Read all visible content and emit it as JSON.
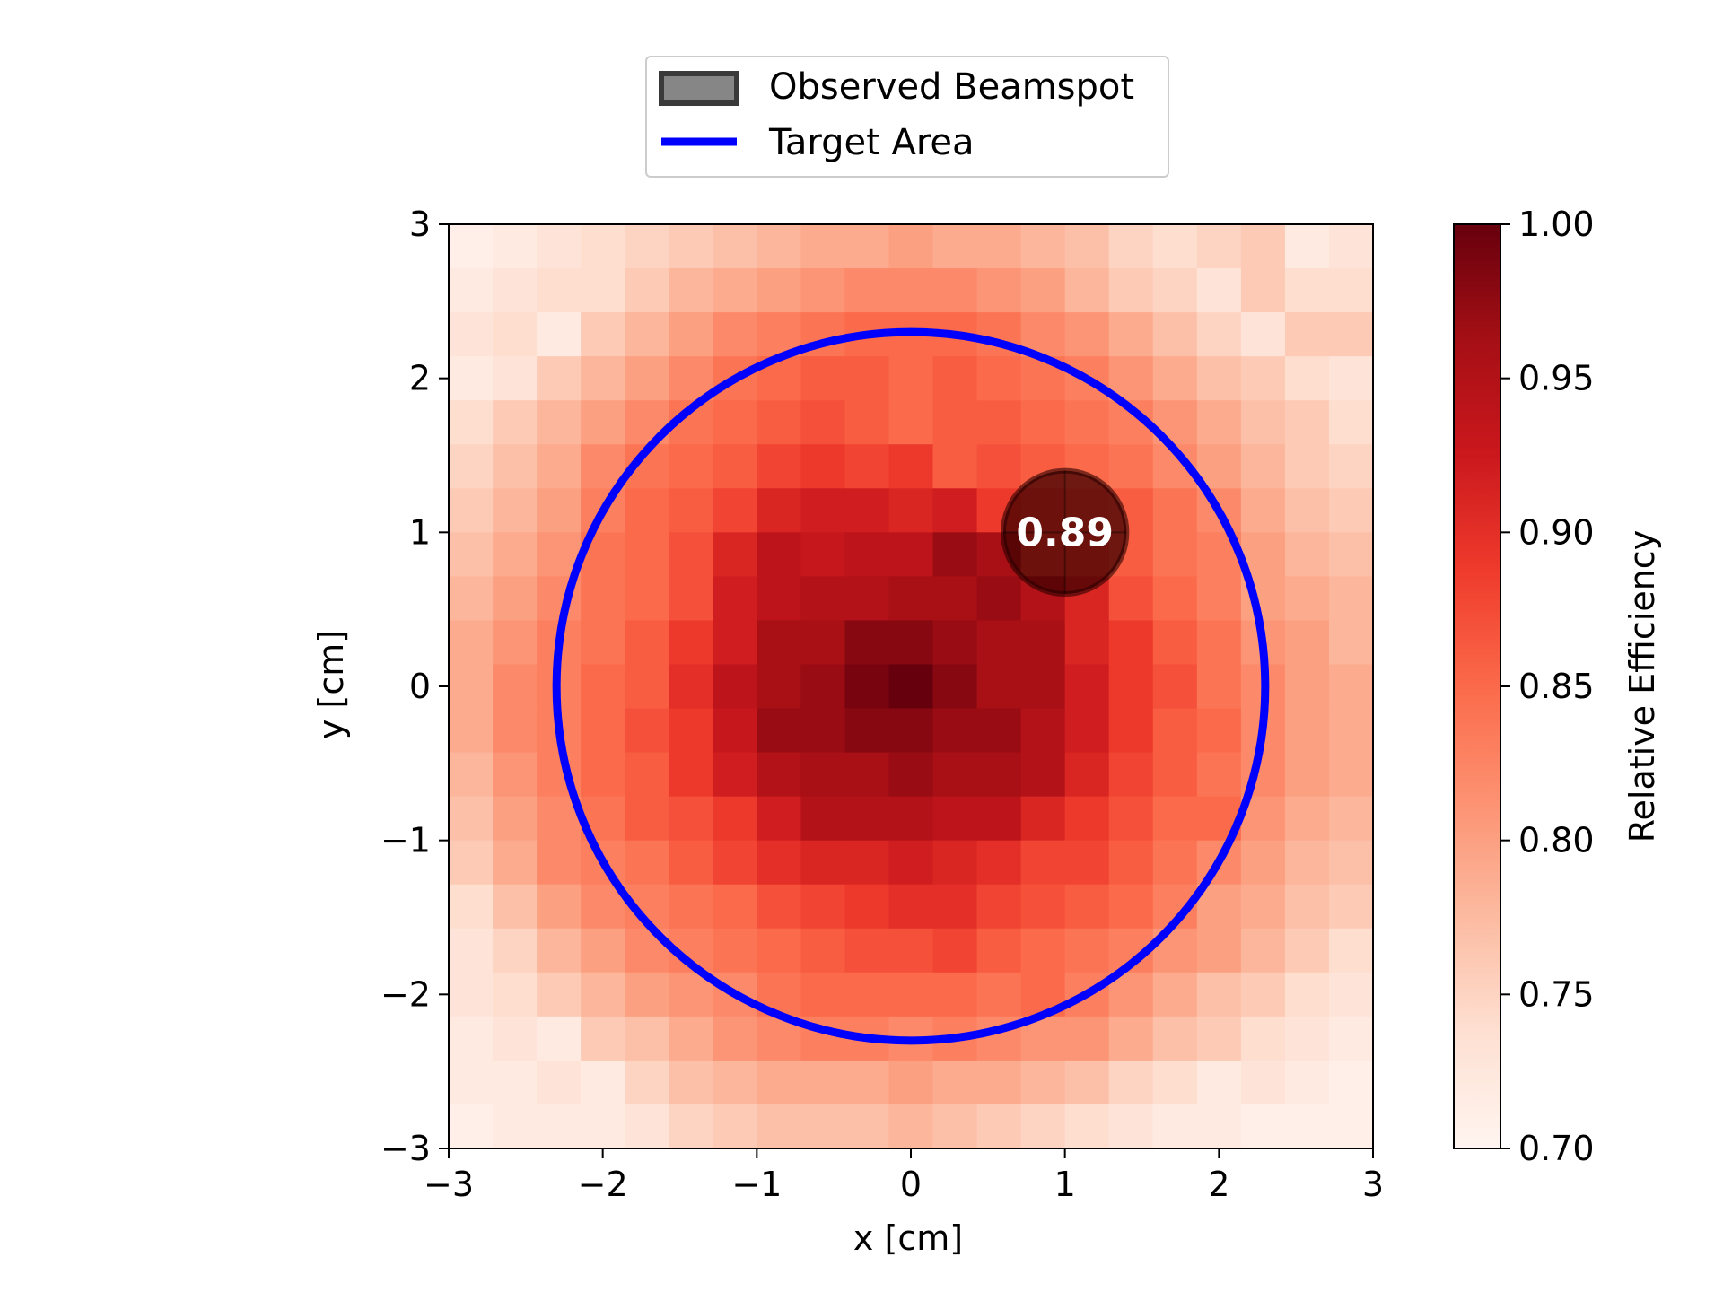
{
  "chart_data": {
    "type": "heatmap",
    "title": "",
    "xlabel": "x [cm]",
    "ylabel": "y [cm]",
    "xlim": [
      -3,
      3
    ],
    "ylim": [
      -3,
      3
    ],
    "x_ticks": [
      -3,
      -2,
      -1,
      0,
      1,
      2,
      3
    ],
    "y_ticks": [
      -3,
      -2,
      -1,
      0,
      1,
      2,
      3
    ],
    "x_tick_labels": [
      "−3",
      "−2",
      "−1",
      "0",
      "1",
      "2",
      "3"
    ],
    "y_tick_labels": [
      "−3",
      "−2",
      "−1",
      "0",
      "1",
      "2",
      "3"
    ],
    "grid": false,
    "colormap": "Reds",
    "colorbar": {
      "label": "Relative Efficiency",
      "range": [
        0.7,
        1.0
      ],
      "ticks": [
        0.7,
        0.75,
        0.8,
        0.85,
        0.9,
        0.95,
        1.0
      ],
      "tick_labels": [
        "0.70",
        "0.75",
        "0.80",
        "0.85",
        "0.90",
        "0.95",
        "1.00"
      ]
    },
    "grid_size": 21,
    "cell_extent": [
      -3,
      3
    ],
    "values_note_top_row_first": true,
    "values": [
      [
        0.71,
        0.72,
        0.73,
        0.74,
        0.75,
        0.76,
        0.77,
        0.78,
        0.79,
        0.79,
        0.8,
        0.79,
        0.79,
        0.78,
        0.77,
        0.75,
        0.74,
        0.75,
        0.76,
        0.72,
        0.73
      ],
      [
        0.72,
        0.73,
        0.74,
        0.74,
        0.76,
        0.78,
        0.79,
        0.8,
        0.81,
        0.82,
        0.82,
        0.82,
        0.81,
        0.8,
        0.78,
        0.76,
        0.75,
        0.73,
        0.76,
        0.74,
        0.74
      ],
      [
        0.73,
        0.74,
        0.72,
        0.76,
        0.78,
        0.8,
        0.82,
        0.83,
        0.84,
        0.85,
        0.85,
        0.85,
        0.84,
        0.82,
        0.81,
        0.79,
        0.77,
        0.75,
        0.73,
        0.76,
        0.76
      ],
      [
        0.72,
        0.73,
        0.76,
        0.78,
        0.8,
        0.82,
        0.84,
        0.85,
        0.86,
        0.86,
        0.85,
        0.86,
        0.85,
        0.84,
        0.83,
        0.81,
        0.79,
        0.77,
        0.76,
        0.74,
        0.73
      ],
      [
        0.74,
        0.76,
        0.78,
        0.8,
        0.82,
        0.84,
        0.85,
        0.86,
        0.87,
        0.86,
        0.85,
        0.86,
        0.86,
        0.85,
        0.84,
        0.83,
        0.81,
        0.79,
        0.77,
        0.76,
        0.74
      ],
      [
        0.75,
        0.77,
        0.79,
        0.82,
        0.84,
        0.85,
        0.86,
        0.88,
        0.89,
        0.88,
        0.89,
        0.86,
        0.87,
        0.86,
        0.85,
        0.84,
        0.82,
        0.8,
        0.78,
        0.76,
        0.75
      ],
      [
        0.76,
        0.78,
        0.8,
        0.83,
        0.85,
        0.86,
        0.88,
        0.91,
        0.92,
        0.92,
        0.91,
        0.92,
        0.89,
        0.88,
        0.87,
        0.86,
        0.84,
        0.82,
        0.79,
        0.77,
        0.76
      ],
      [
        0.77,
        0.79,
        0.81,
        0.84,
        0.85,
        0.87,
        0.91,
        0.94,
        0.93,
        0.94,
        0.94,
        0.97,
        0.96,
        0.88,
        0.88,
        0.86,
        0.84,
        0.83,
        0.8,
        0.78,
        0.77
      ],
      [
        0.78,
        0.8,
        0.82,
        0.84,
        0.85,
        0.87,
        0.92,
        0.94,
        0.95,
        0.95,
        0.96,
        0.96,
        0.97,
        0.95,
        0.91,
        0.87,
        0.85,
        0.83,
        0.8,
        0.79,
        0.78
      ],
      [
        0.79,
        0.81,
        0.83,
        0.84,
        0.86,
        0.89,
        0.92,
        0.96,
        0.96,
        0.98,
        0.98,
        0.97,
        0.96,
        0.96,
        0.91,
        0.89,
        0.86,
        0.84,
        0.81,
        0.8,
        0.78
      ],
      [
        0.79,
        0.82,
        0.83,
        0.85,
        0.86,
        0.9,
        0.94,
        0.96,
        0.97,
        0.99,
        1.0,
        0.98,
        0.96,
        0.96,
        0.92,
        0.89,
        0.87,
        0.84,
        0.82,
        0.8,
        0.79
      ],
      [
        0.79,
        0.82,
        0.83,
        0.85,
        0.87,
        0.89,
        0.93,
        0.97,
        0.97,
        0.98,
        0.98,
        0.97,
        0.97,
        0.95,
        0.92,
        0.89,
        0.86,
        0.85,
        0.82,
        0.8,
        0.79
      ],
      [
        0.78,
        0.81,
        0.83,
        0.85,
        0.86,
        0.89,
        0.92,
        0.95,
        0.96,
        0.96,
        0.97,
        0.96,
        0.96,
        0.95,
        0.91,
        0.88,
        0.86,
        0.84,
        0.82,
        0.8,
        0.79
      ],
      [
        0.77,
        0.8,
        0.82,
        0.84,
        0.86,
        0.87,
        0.89,
        0.92,
        0.95,
        0.95,
        0.95,
        0.94,
        0.94,
        0.91,
        0.89,
        0.87,
        0.85,
        0.85,
        0.81,
        0.79,
        0.78
      ],
      [
        0.76,
        0.79,
        0.82,
        0.83,
        0.84,
        0.86,
        0.88,
        0.9,
        0.91,
        0.91,
        0.92,
        0.91,
        0.9,
        0.88,
        0.88,
        0.86,
        0.84,
        0.82,
        0.8,
        0.78,
        0.77
      ],
      [
        0.74,
        0.77,
        0.8,
        0.82,
        0.83,
        0.84,
        0.85,
        0.87,
        0.88,
        0.89,
        0.9,
        0.9,
        0.88,
        0.87,
        0.86,
        0.85,
        0.83,
        0.8,
        0.79,
        0.77,
        0.76
      ],
      [
        0.73,
        0.75,
        0.78,
        0.8,
        0.82,
        0.83,
        0.84,
        0.85,
        0.86,
        0.87,
        0.87,
        0.88,
        0.86,
        0.85,
        0.84,
        0.83,
        0.81,
        0.8,
        0.78,
        0.76,
        0.74
      ],
      [
        0.73,
        0.74,
        0.76,
        0.78,
        0.8,
        0.81,
        0.82,
        0.84,
        0.85,
        0.85,
        0.85,
        0.85,
        0.84,
        0.85,
        0.83,
        0.81,
        0.79,
        0.77,
        0.76,
        0.74,
        0.73
      ],
      [
        0.72,
        0.73,
        0.72,
        0.76,
        0.77,
        0.79,
        0.81,
        0.82,
        0.83,
        0.83,
        0.82,
        0.83,
        0.82,
        0.81,
        0.81,
        0.79,
        0.77,
        0.76,
        0.74,
        0.73,
        0.72
      ],
      [
        0.72,
        0.72,
        0.73,
        0.72,
        0.75,
        0.77,
        0.78,
        0.79,
        0.79,
        0.79,
        0.8,
        0.79,
        0.79,
        0.78,
        0.77,
        0.75,
        0.74,
        0.72,
        0.73,
        0.72,
        0.71
      ],
      [
        0.71,
        0.72,
        0.72,
        0.72,
        0.73,
        0.75,
        0.76,
        0.77,
        0.77,
        0.77,
        0.78,
        0.77,
        0.76,
        0.75,
        0.74,
        0.73,
        0.72,
        0.72,
        0.71,
        0.71,
        0.71
      ]
    ],
    "target_area": {
      "center": [
        0,
        0
      ],
      "radius": 2.3,
      "color": "#0000ff"
    },
    "observed_beamspot": {
      "center": [
        1,
        1
      ],
      "radius": 0.4,
      "value_label": "0.89",
      "color": "#3f0000"
    },
    "legend": {
      "placement": "top-center",
      "entries": [
        {
          "label": "Observed Beamspot",
          "kind": "patch"
        },
        {
          "label": "Target Area",
          "kind": "line",
          "color": "#0000ff"
        }
      ]
    }
  }
}
